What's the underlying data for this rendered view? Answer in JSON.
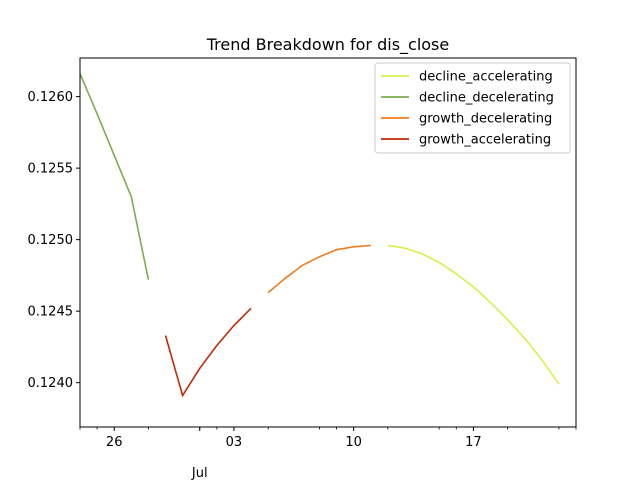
{
  "chart_data": {
    "type": "line",
    "title": "Trend Breakdown for dis_close",
    "xlabel": "",
    "ylabel": "",
    "x_tick_labels": [
      "26",
      "03",
      "10",
      "17"
    ],
    "x_tick_dates": [
      "2023-06-26",
      "2023-07-03",
      "2023-07-10",
      "2023-07-17"
    ],
    "x_secondary_label": "Jul",
    "xlim": [
      "2023-06-24",
      "2023-07-23"
    ],
    "y_tick_labels": [
      "0.1240",
      "0.1245",
      "0.1250",
      "0.1255",
      "0.1260"
    ],
    "ylim": [
      0.12369,
      0.12627
    ],
    "grid": false,
    "legend_position": "top-right",
    "series": [
      {
        "name": "decline_accelerating",
        "color": "#d8ef4c",
        "x": [
          "2023-07-12",
          "2023-07-13",
          "2023-07-14",
          "2023-07-15",
          "2023-07-16",
          "2023-07-17",
          "2023-07-18",
          "2023-07-19",
          "2023-07-20",
          "2023-07-21",
          "2023-07-22"
        ],
        "y": [
          0.12496,
          0.12494,
          0.1249,
          0.12484,
          0.12476,
          0.12467,
          0.12456,
          0.12444,
          0.12431,
          0.12416,
          0.12399
        ]
      },
      {
        "name": "decline_decelerating",
        "color": "#7aad4d",
        "x": [
          "2023-06-24",
          "2023-06-25",
          "2023-06-26",
          "2023-06-27",
          "2023-06-28"
        ],
        "y": [
          0.12616,
          0.12588,
          0.12559,
          0.1253,
          0.12472
        ]
      },
      {
        "name": "growth_decelerating",
        "color": "#f07c1e",
        "x": [
          "2023-07-05",
          "2023-07-06",
          "2023-07-07",
          "2023-07-08",
          "2023-07-09",
          "2023-07-10",
          "2023-07-11"
        ],
        "y": [
          0.12463,
          0.12473,
          0.12482,
          0.12488,
          0.12493,
          0.12495,
          0.12496
        ]
      },
      {
        "name": "growth_accelerating",
        "color": "#c02a05",
        "x": [
          "2023-06-29",
          "2023-06-30",
          "2023-07-01",
          "2023-07-02",
          "2023-07-03",
          "2023-07-04"
        ],
        "y": [
          0.12433,
          0.12391,
          0.1241,
          0.12426,
          0.1244,
          0.12452
        ]
      }
    ]
  }
}
